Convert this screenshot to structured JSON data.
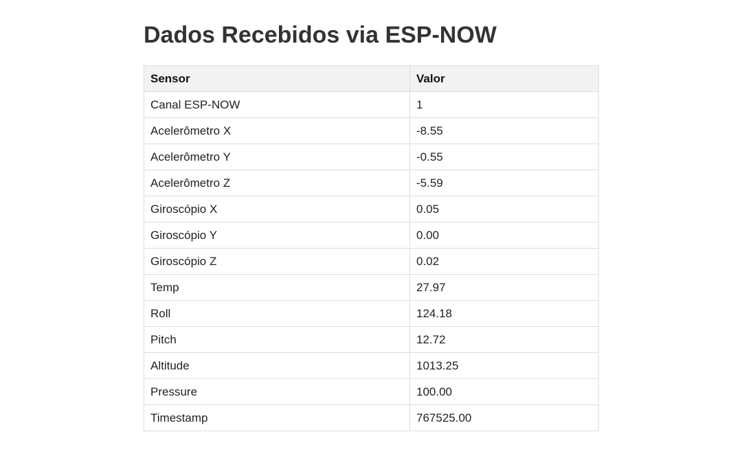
{
  "page": {
    "title": "Dados Recebidos via ESP-NOW"
  },
  "table": {
    "headers": {
      "sensor": "Sensor",
      "value": "Valor"
    },
    "rows": [
      {
        "sensor": "Canal ESP-NOW",
        "value": "1"
      },
      {
        "sensor": "Acelerômetro X",
        "value": "-8.55"
      },
      {
        "sensor": "Acelerômetro Y",
        "value": "-0.55"
      },
      {
        "sensor": "Acelerômetro Z",
        "value": "-5.59"
      },
      {
        "sensor": "Giroscópio X",
        "value": "0.05"
      },
      {
        "sensor": "Giroscópio Y",
        "value": "0.00"
      },
      {
        "sensor": "Giroscópio Z",
        "value": "0.02"
      },
      {
        "sensor": "Temp",
        "value": "27.97"
      },
      {
        "sensor": "Roll",
        "value": "124.18"
      },
      {
        "sensor": "Pitch",
        "value": "12.72"
      },
      {
        "sensor": "Altitude",
        "value": "1013.25"
      },
      {
        "sensor": "Pressure",
        "value": "100.00"
      },
      {
        "sensor": "Timestamp",
        "value": "767525.00"
      }
    ]
  }
}
